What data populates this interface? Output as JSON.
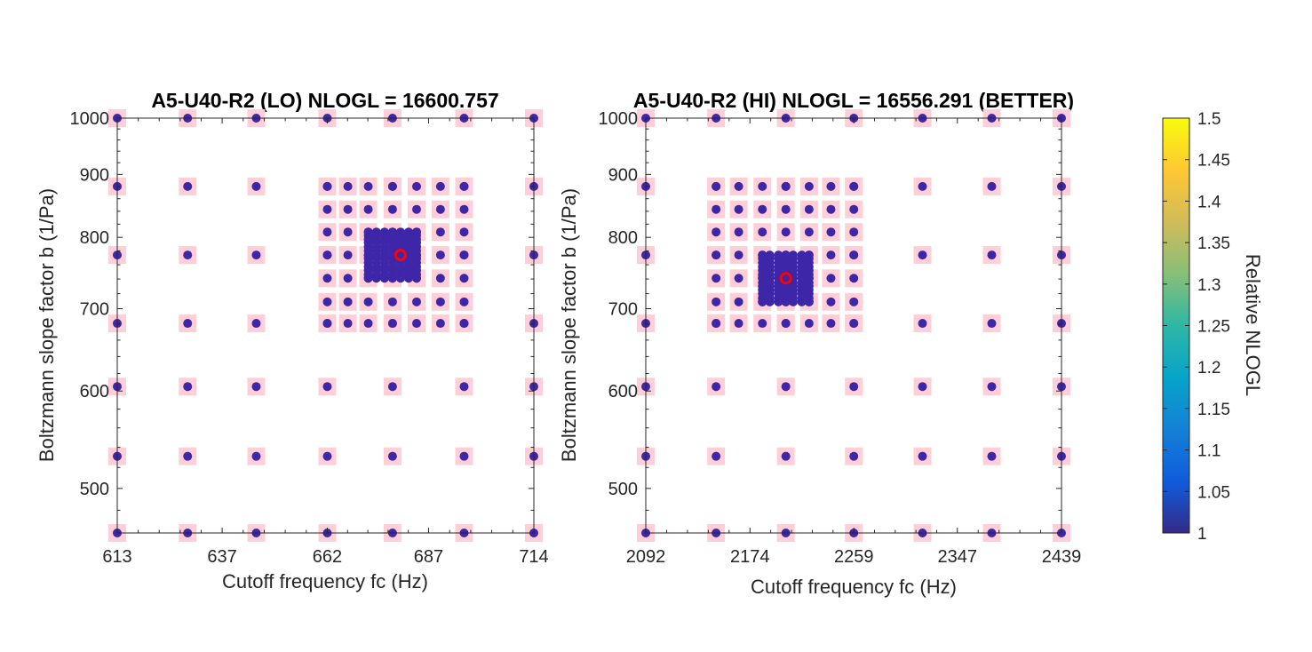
{
  "chart_data": [
    {
      "type": "scatter",
      "title": "A5-U40-R2 (LO) NLOGL = 16600.757",
      "xlabel": "Cutoff frequency fc (Hz)",
      "ylabel": "Boltzmann slope factor b (1/Pa)",
      "x_scale": "log",
      "y_scale": "log",
      "xlim": [
        613,
        714
      ],
      "ylim": [
        460,
        1000
      ],
      "x_ticks": [
        "613",
        "637",
        "662",
        "687",
        "714"
      ],
      "y_ticks": [
        "500",
        "600",
        "700",
        "800",
        "900",
        "1000"
      ],
      "grid": false,
      "coarse_x": [
        613,
        629,
        645,
        662,
        678,
        696,
        714
      ],
      "coarse_y": [
        460,
        531,
        605,
        681,
        774,
        880,
        1000
      ],
      "medium_x": [
        662,
        667,
        672,
        678,
        684,
        690,
        696
      ],
      "medium_y": [
        681,
        709,
        741,
        774,
        808,
        843,
        880
      ],
      "fine_x": [
        672,
        674,
        676,
        678,
        680,
        682,
        684
      ],
      "fine_y": [
        741,
        746,
        752,
        757,
        763,
        769,
        774,
        780,
        786,
        792,
        797,
        803,
        808
      ],
      "best": {
        "x": 680,
        "y": 774
      },
      "marker_value": 1.0,
      "sample_marker_color": "#3e26a8",
      "evaluated_marker_color": "#ffcfd8",
      "best_marker_color": "#ff0000"
    },
    {
      "type": "scatter",
      "title": "A5-U40-R2 (HI) NLOGL = 16556.291 (BETTER)",
      "xlabel": "Cutoff frequency fc (Hz)",
      "ylabel": "Boltzmann slope factor b (1/Pa)",
      "x_scale": "log",
      "y_scale": "log",
      "xlim": [
        2092,
        2439
      ],
      "ylim": [
        460,
        1000
      ],
      "x_ticks": [
        "2092",
        "2174",
        "2259",
        "2347",
        "2439"
      ],
      "y_ticks": [
        "500",
        "600",
        "700",
        "800",
        "900",
        "1000"
      ],
      "grid": false,
      "coarse_x": [
        2092,
        2147,
        2203,
        2259,
        2317,
        2377,
        2439
      ],
      "coarse_y": [
        460,
        531,
        605,
        681,
        774,
        880,
        1000
      ],
      "medium_x": [
        2147,
        2165,
        2184,
        2203,
        2222,
        2240,
        2259
      ],
      "medium_y": [
        681,
        709,
        741,
        774,
        808,
        843,
        880
      ],
      "fine_x": [
        2184,
        2190,
        2197,
        2203,
        2209,
        2216,
        2222
      ],
      "fine_y": [
        709,
        714,
        720,
        725,
        730,
        735,
        741,
        746,
        752,
        757,
        763,
        769,
        774
      ],
      "best": {
        "x": 2203,
        "y": 741
      },
      "marker_value": 1.0,
      "sample_marker_color": "#3e26a8",
      "evaluated_marker_color": "#ffcfd8",
      "best_marker_color": "#ff0000"
    }
  ],
  "colorbar": {
    "label": "Relative NLOGL",
    "range": [
      1,
      1.5
    ],
    "ticks": [
      "1",
      "1.05",
      "1.1",
      "1.15",
      "1.2",
      "1.25",
      "1.3",
      "1.35",
      "1.4",
      "1.45",
      "1.5"
    ],
    "colormap": "parula",
    "colormap_stops": [
      "#352a87",
      "#0f5cdd",
      "#1481d6",
      "#06a4ca",
      "#2eb7a4",
      "#87bf77",
      "#d1bb59",
      "#fec832",
      "#f9fb0e"
    ]
  }
}
